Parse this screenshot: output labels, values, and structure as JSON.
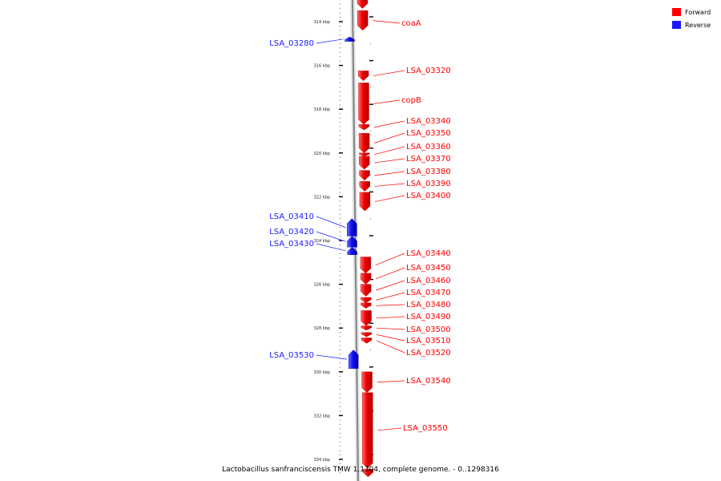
{
  "caption": "Lactobacillus sanfranciscensis TMW 1.1304, complete genome. - 0..1298316",
  "legend": [
    {
      "label": "Forward",
      "color": "#ff0000"
    },
    {
      "label": "Reverse",
      "color": "#1a1aff"
    }
  ],
  "colors": {
    "forward": "#ff0000",
    "reverse": "#1a1aff",
    "backbone": "#888888"
  },
  "axis": {
    "unit": "kbp",
    "range_kbp": [
      312.6,
      334.6
    ],
    "ticks": [
      {
        "kbp": 314,
        "label": "314 kbp"
      },
      {
        "kbp": 316,
        "label": "316 kbp"
      },
      {
        "kbp": 318,
        "label": "318 kbp"
      },
      {
        "kbp": 320,
        "label": "320 kbp"
      },
      {
        "kbp": 322,
        "label": "322 kbp"
      },
      {
        "kbp": 324,
        "label": "324 kbp"
      },
      {
        "kbp": 326,
        "label": "326 kbp"
      },
      {
        "kbp": 328,
        "label": "328 kbp"
      },
      {
        "kbp": 330,
        "label": "330 kbp"
      },
      {
        "kbp": 332,
        "label": "332 kbp"
      },
      {
        "kbp": 334,
        "label": "334 kbp"
      }
    ]
  },
  "genes": [
    {
      "name": "",
      "strand": "forward",
      "start_kbp": 312.5,
      "end_kbp": 313.4
    },
    {
      "name": "coaA",
      "strand": "forward",
      "start_kbp": 313.5,
      "end_kbp": 314.4
    },
    {
      "name": "LSA_03280",
      "strand": "reverse",
      "start_kbp": 314.7,
      "end_kbp": 314.9
    },
    {
      "name": "LSA_03320",
      "strand": "forward",
      "start_kbp": 316.25,
      "end_kbp": 316.7
    },
    {
      "name": "copB",
      "strand": "forward",
      "start_kbp": 316.8,
      "end_kbp": 318.7
    },
    {
      "name": "LSA_03340",
      "strand": "forward",
      "start_kbp": 318.7,
      "end_kbp": 318.95
    },
    {
      "name": "LSA_03350",
      "strand": "forward",
      "start_kbp": 319.1,
      "end_kbp": 320.0
    },
    {
      "name": "LSA_03360",
      "strand": "forward",
      "start_kbp": 320.0,
      "end_kbp": 320.15
    },
    {
      "name": "LSA_03370",
      "strand": "forward",
      "start_kbp": 320.15,
      "end_kbp": 320.75
    },
    {
      "name": "LSA_03380",
      "strand": "forward",
      "start_kbp": 320.8,
      "end_kbp": 321.25
    },
    {
      "name": "LSA_03390",
      "strand": "forward",
      "start_kbp": 321.3,
      "end_kbp": 321.75
    },
    {
      "name": "LSA_03400",
      "strand": "forward",
      "start_kbp": 321.8,
      "end_kbp": 322.65
    },
    {
      "name": "LSA_03410",
      "strand": "reverse",
      "start_kbp": 323.0,
      "end_kbp": 323.8
    },
    {
      "name": "LSA_03420",
      "strand": "reverse",
      "start_kbp": 323.8,
      "end_kbp": 324.3
    },
    {
      "name": "LSA_03430",
      "strand": "reverse",
      "start_kbp": 324.3,
      "end_kbp": 324.65
    },
    {
      "name": "LSA_03440",
      "strand": "forward",
      "start_kbp": 324.75,
      "end_kbp": 325.5
    },
    {
      "name": "LSA_03450",
      "strand": "forward",
      "start_kbp": 325.5,
      "end_kbp": 326.0
    },
    {
      "name": "LSA_03460",
      "strand": "forward",
      "start_kbp": 326.0,
      "end_kbp": 326.55
    },
    {
      "name": "LSA_03470",
      "strand": "forward",
      "start_kbp": 326.6,
      "end_kbp": 326.85
    },
    {
      "name": "LSA_03480",
      "strand": "forward",
      "start_kbp": 326.85,
      "end_kbp": 327.1
    },
    {
      "name": "LSA_03490",
      "strand": "forward",
      "start_kbp": 327.2,
      "end_kbp": 327.9
    },
    {
      "name": "LSA_03500",
      "strand": "forward",
      "start_kbp": 327.9,
      "end_kbp": 328.1
    },
    {
      "name": "LSA_03510",
      "strand": "forward",
      "start_kbp": 328.2,
      "end_kbp": 328.4
    },
    {
      "name": "LSA_03520",
      "strand": "forward",
      "start_kbp": 328.45,
      "end_kbp": 328.7
    },
    {
      "name": "LSA_03530",
      "strand": "reverse",
      "start_kbp": 329.0,
      "end_kbp": 329.85
    },
    {
      "name": "LSA_03540",
      "strand": "forward",
      "start_kbp": 330.0,
      "end_kbp": 330.95
    },
    {
      "name": "LSA_03550",
      "strand": "forward",
      "start_kbp": 330.95,
      "end_kbp": 334.4
    },
    {
      "name": "",
      "strand": "forward",
      "start_kbp": 334.45,
      "end_kbp": 334.8
    }
  ]
}
